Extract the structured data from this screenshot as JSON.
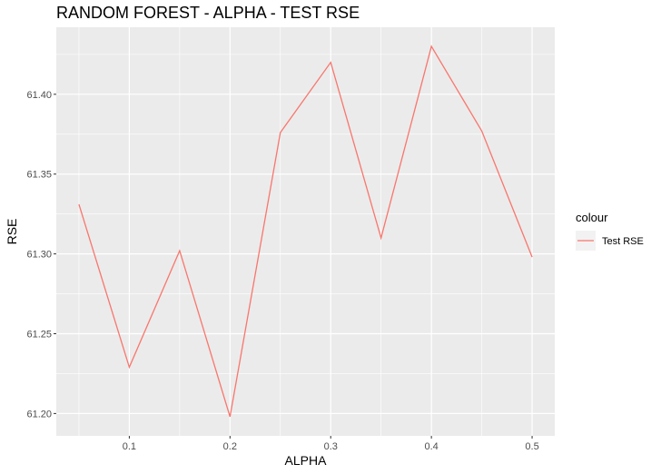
{
  "chart_data": {
    "type": "line",
    "title": "RANDOM FOREST - ALPHA - TEST RSE",
    "xlabel": "ALPHA",
    "ylabel": "RSE",
    "x": [
      0.05,
      0.1,
      0.15,
      0.2,
      0.25,
      0.3,
      0.35,
      0.4,
      0.45,
      0.5
    ],
    "series": [
      {
        "name": "Test RSE",
        "values": [
          61.331,
          61.229,
          61.302,
          61.198,
          61.376,
          61.42,
          61.31,
          61.43,
          61.377,
          61.298
        ],
        "color": "#F8766D"
      }
    ],
    "xlim": [
      0.0275,
      0.5225
    ],
    "ylim": [
      61.186,
      61.442
    ],
    "xticks": [
      0.1,
      0.2,
      0.3,
      0.4,
      0.5
    ],
    "xtick_labels": [
      "0.1",
      "0.2",
      "0.3",
      "0.4",
      "0.5"
    ],
    "yticks": [
      61.2,
      61.25,
      61.3,
      61.35,
      61.4
    ],
    "ytick_labels": [
      "61.20",
      "61.25",
      "61.30",
      "61.35",
      "61.40"
    ],
    "grid": true,
    "legend": {
      "title": "colour",
      "placement": "right"
    },
    "colors": {
      "panel": "#EBEBEB",
      "grid_major": "#FFFFFF",
      "tick_text": "#4D4D4D"
    }
  }
}
